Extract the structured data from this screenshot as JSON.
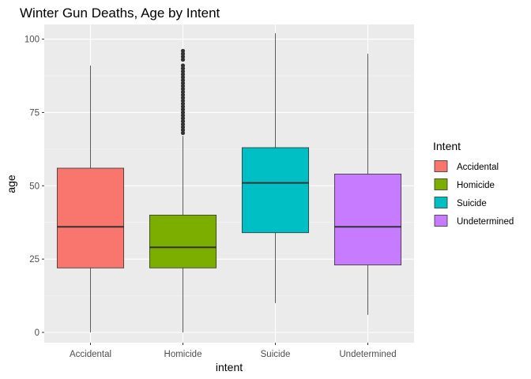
{
  "chart_data": {
    "type": "boxplot",
    "title": "Winter Gun Deaths, Age by Intent",
    "xlabel": "intent",
    "ylabel": "age",
    "ylim": [
      -3.5,
      105
    ],
    "yticks": [
      0,
      25,
      50,
      75,
      100
    ],
    "grid": true,
    "legend": {
      "title": "Intent",
      "placement": "right",
      "entries": [
        "Accidental",
        "Homicide",
        "Suicide",
        "Undetermined"
      ]
    },
    "categories": [
      "Accidental",
      "Homicide",
      "Suicide",
      "Undetermined"
    ],
    "series": [
      {
        "category": "Accidental",
        "color": "#F8766D",
        "min": 0,
        "q1": 22,
        "median": 36,
        "q3": 56,
        "max": 91,
        "outliers": []
      },
      {
        "category": "Homicide",
        "color": "#7CAE00",
        "min": 0,
        "q1": 22,
        "median": 29,
        "q3": 40,
        "max": 67,
        "outliers": [
          68,
          69,
          70,
          71,
          72,
          73,
          74,
          75,
          76,
          77,
          78,
          79,
          80,
          81,
          82,
          83,
          84,
          85,
          86,
          87,
          88,
          89,
          90,
          91,
          93,
          94,
          95,
          96
        ]
      },
      {
        "category": "Suicide",
        "color": "#00BFC4",
        "min": 10,
        "q1": 34,
        "median": 51,
        "q3": 63,
        "max": 102,
        "outliers": []
      },
      {
        "category": "Undetermined",
        "color": "#C77CFF",
        "min": 6,
        "q1": 23,
        "median": 36,
        "q3": 54,
        "max": 95,
        "outliers": []
      }
    ]
  }
}
